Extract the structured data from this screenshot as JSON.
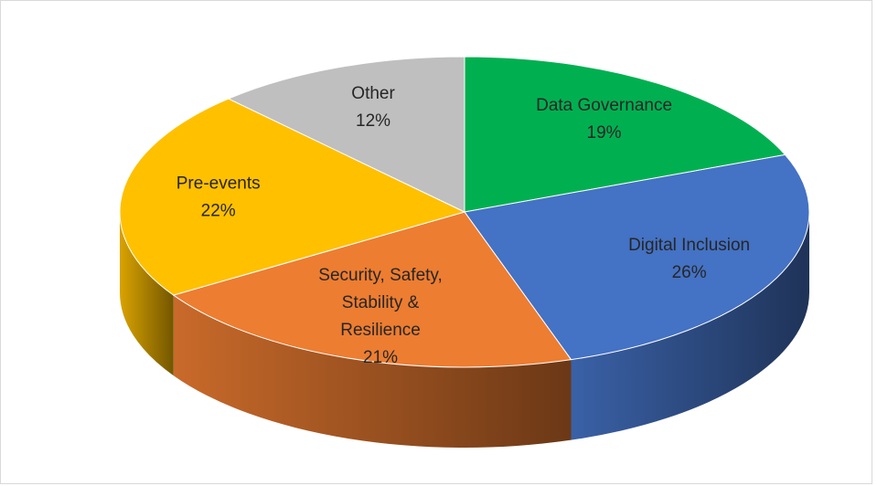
{
  "chart_data": {
    "type": "pie3d",
    "categories": [
      "Data Governance",
      "Digital Inclusion",
      "Security, Safety, Stability & Resilience",
      "Pre-events",
      "Other"
    ],
    "values": [
      19,
      26,
      21,
      22,
      12
    ],
    "value_labels": [
      "19%",
      "26%",
      "21%",
      "22%",
      "12%"
    ],
    "colors": [
      "#00b050",
      "#4472c4",
      "#ed7d31",
      "#ffc000",
      "#bfbfbf"
    ]
  }
}
